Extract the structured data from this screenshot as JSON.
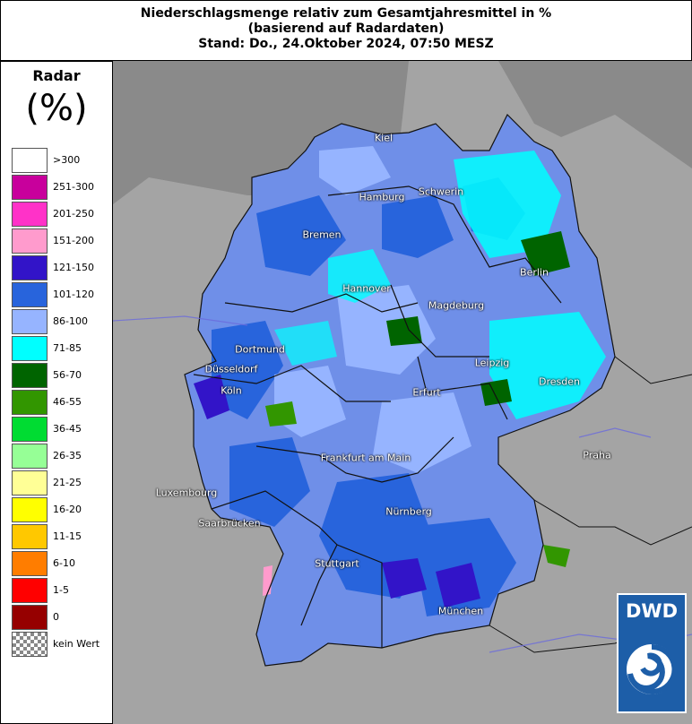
{
  "header": {
    "line1": "Niederschlagsmenge relativ zum Gesamtjahresmittel in %",
    "line2": "(basierend auf Radardaten)",
    "line3": "Stand: Do., 24.Oktober 2024, 07:50 MESZ"
  },
  "legend": {
    "title": "Radar",
    "unit": "(%)",
    "items": [
      {
        "label": ">300",
        "color": "#ffffff"
      },
      {
        "label": "251-300",
        "color": "#c8009c"
      },
      {
        "label": "201-250",
        "color": "#ff32c8"
      },
      {
        "label": "151-200",
        "color": "#ff9bcd"
      },
      {
        "label": "121-150",
        "color": "#3214c8"
      },
      {
        "label": "101-120",
        "color": "#2864dc"
      },
      {
        "label": "86-100",
        "color": "#96b4ff"
      },
      {
        "label": "71-85",
        "color": "#00ffff"
      },
      {
        "label": "56-70",
        "color": "#006400"
      },
      {
        "label": "46-55",
        "color": "#329600"
      },
      {
        "label": "36-45",
        "color": "#00dc32"
      },
      {
        "label": "26-35",
        "color": "#96ff96"
      },
      {
        "label": "21-25",
        "color": "#ffff96"
      },
      {
        "label": "16-20",
        "color": "#ffff00"
      },
      {
        "label": "11-15",
        "color": "#ffc800"
      },
      {
        "label": "6-10",
        "color": "#ff7d00"
      },
      {
        "label": "1-5",
        "color": "#ff0000"
      },
      {
        "label": "0",
        "color": "#960000"
      },
      {
        "label": "kein Wert",
        "color": "checker"
      }
    ]
  },
  "cities": [
    "Kiel",
    "Hamburg",
    "Schwerin",
    "Bremen",
    "Berlin",
    "Hannover",
    "Magdeburg",
    "Dortmund",
    "Düsseldorf",
    "Leipzig",
    "Dresden",
    "Köln",
    "Erfurt",
    "Praha",
    "Frankfurt am Main",
    "Luxembourg",
    "Nürnberg",
    "Saarbrücken",
    "Stuttgart",
    "München"
  ],
  "logo": {
    "text": "DWD"
  }
}
